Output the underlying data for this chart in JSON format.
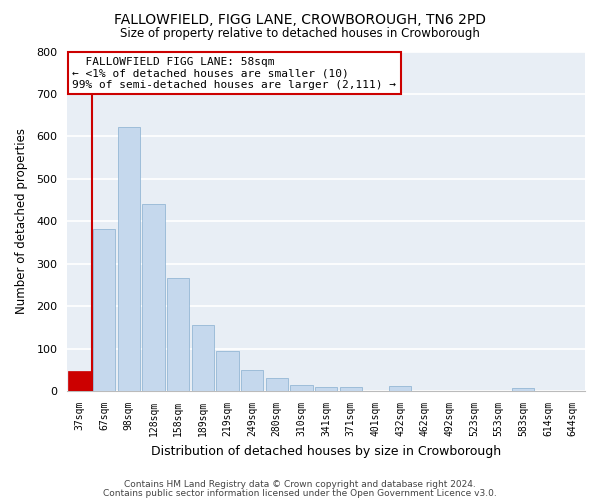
{
  "title": "FALLOWFIELD, FIGG LANE, CROWBOROUGH, TN6 2PD",
  "subtitle": "Size of property relative to detached houses in Crowborough",
  "xlabel": "Distribution of detached houses by size in Crowborough",
  "ylabel": "Number of detached properties",
  "bar_color": "#c5d8ed",
  "bar_edge_color": "#88afd0",
  "highlight_bar_color": "#cc0000",
  "background_color": "#e8eef5",
  "categories": [
    "37sqm",
    "67sqm",
    "98sqm",
    "128sqm",
    "158sqm",
    "189sqm",
    "219sqm",
    "249sqm",
    "280sqm",
    "310sqm",
    "341sqm",
    "371sqm",
    "401sqm",
    "432sqm",
    "462sqm",
    "492sqm",
    "523sqm",
    "553sqm",
    "583sqm",
    "614sqm",
    "644sqm"
  ],
  "values": [
    47,
    383,
    622,
    440,
    267,
    156,
    95,
    50,
    30,
    15,
    10,
    10,
    0,
    12,
    0,
    0,
    0,
    0,
    8,
    0,
    0
  ],
  "highlight_index": 0,
  "annotation_title": "FALLOWFIELD FIGG LANE: 58sqm",
  "annotation_line1": "← <1% of detached houses are smaller (10)",
  "annotation_line2": "99% of semi-detached houses are larger (2,111) →",
  "ylim": [
    0,
    800
  ],
  "yticks": [
    0,
    100,
    200,
    300,
    400,
    500,
    600,
    700,
    800
  ],
  "footer1": "Contains HM Land Registry data © Crown copyright and database right 2024.",
  "footer2": "Contains public sector information licensed under the Open Government Licence v3.0."
}
